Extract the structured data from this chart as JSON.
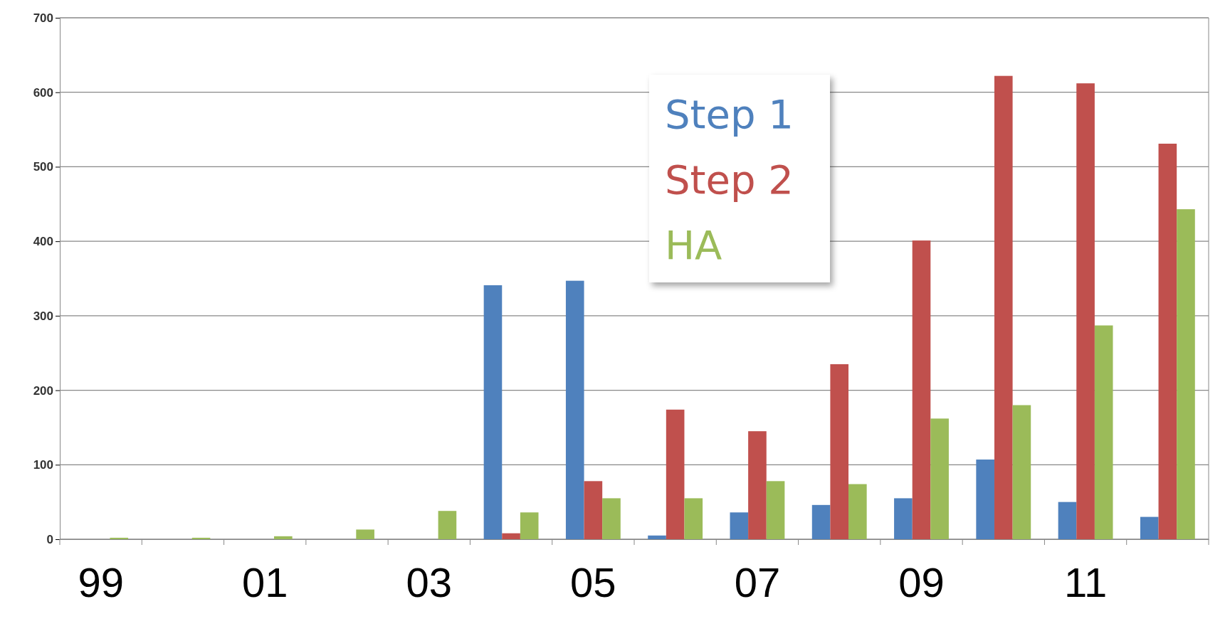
{
  "chart_data": {
    "type": "bar",
    "categories": [
      "99",
      null,
      "01",
      null,
      "03",
      null,
      "05",
      null,
      "07",
      null,
      "09",
      null,
      "11",
      null
    ],
    "series": [
      {
        "name": "Step 1",
        "color": "#4f81bd",
        "values": [
          0,
          0,
          0,
          0,
          0,
          341,
          347,
          5,
          36,
          46,
          55,
          107,
          50,
          30
        ]
      },
      {
        "name": "Step 2",
        "color": "#c0504d",
        "values": [
          0,
          0,
          0,
          0,
          0,
          8,
          78,
          174,
          145,
          235,
          401,
          622,
          612,
          531
        ]
      },
      {
        "name": "HA",
        "color": "#9bbb59",
        "values": [
          2,
          2,
          4,
          13,
          38,
          36,
          55,
          55,
          78,
          74,
          162,
          180,
          287,
          443
        ]
      }
    ],
    "ylim": [
      0,
      700
    ],
    "yticks": [
      0,
      100,
      200,
      300,
      400,
      500,
      600,
      700
    ],
    "grid": "y",
    "legend": "top"
  }
}
